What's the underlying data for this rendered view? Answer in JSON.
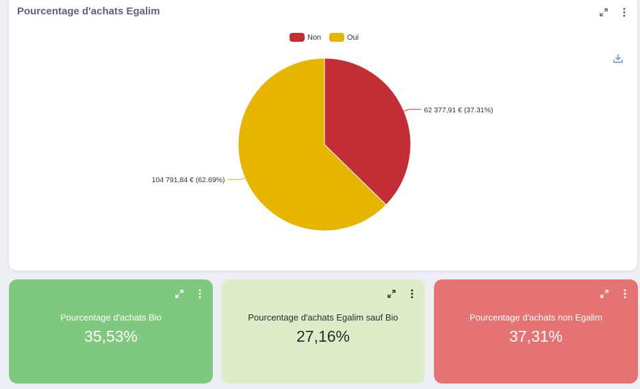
{
  "pie_card": {
    "title": "Pourcentage d'achats Egalim"
  },
  "chart_data": {
    "type": "pie",
    "title": "Pourcentage d'achats Egalim",
    "legend_position": "top",
    "categories": [
      "Non",
      "Oui"
    ],
    "values": [
      62377.91,
      104791.84
    ],
    "percent": [
      37.31,
      62.69
    ],
    "colors": [
      "#c22e35",
      "#e5b500"
    ],
    "data_labels": [
      "62 377,91 € (37.31%)",
      "104 791,84 € (62.69%)"
    ]
  },
  "kpis": [
    {
      "title": "Pourcentage d'achats Bio",
      "value": "35,53%",
      "bg": "#7ec87f",
      "color": "#ffffff"
    },
    {
      "title": "Pourcentage d'achats Egalim sauf Bio",
      "value": "27,16%",
      "bg": "#deecc8",
      "color": "#2b2b2b"
    },
    {
      "title": "Pourcentage d'achats non Egalim",
      "value": "37,31%",
      "bg": "#e57373",
      "color": "#ffffff"
    }
  ],
  "icons": {
    "expand": "expand-icon",
    "more": "more-vertical-icon",
    "download": "download-icon"
  }
}
